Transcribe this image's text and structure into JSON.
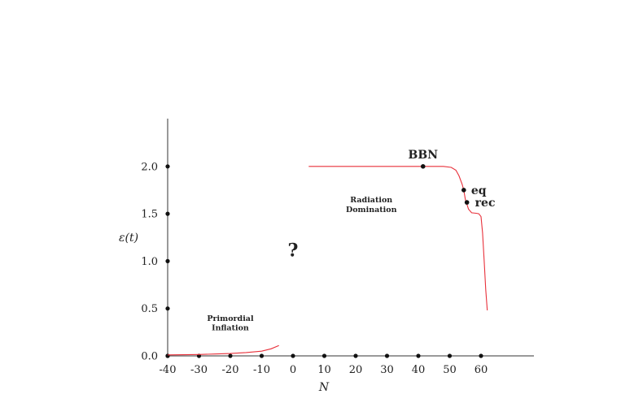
{
  "chart_data": {
    "type": "line",
    "title": "",
    "xlabel": "N",
    "ylabel": "ε(t)",
    "xlim": [
      -40,
      70
    ],
    "ylim": [
      0,
      2.5
    ],
    "xticks": [
      -40,
      -30,
      -20,
      -10,
      0,
      10,
      20,
      30,
      40,
      50,
      60
    ],
    "xtick_labels": [
      "-40",
      "-30",
      "-20",
      "-10",
      "0",
      "10",
      "20",
      "30",
      "40",
      "50",
      "60"
    ],
    "yticks": [
      0,
      0.5,
      1.0,
      1.5,
      2.0
    ],
    "ytick_labels": [
      "0.0",
      "0.5",
      "1.0",
      "1.5",
      "2.0"
    ],
    "series": [
      {
        "color": "#e8303a",
        "x": [
          -40,
          -35,
          -30,
          -25,
          -20,
          -15,
          -10,
          -7,
          -4.5
        ],
        "y": [
          0.01,
          0.012,
          0.015,
          0.02,
          0.025,
          0.035,
          0.05,
          0.075,
          0.11
        ]
      },
      {
        "color": "#e8303a",
        "x": [
          5,
          15,
          25,
          35,
          41.5,
          48,
          50.5,
          52,
          53,
          54,
          54.5,
          55,
          56,
          57,
          58.5,
          59.3,
          60,
          60.5,
          61,
          61.5,
          62
        ],
        "y": [
          2.0,
          2.0,
          2.0,
          2.0,
          2.0,
          2.0,
          1.99,
          1.96,
          1.9,
          1.81,
          1.75,
          1.65,
          1.55,
          1.51,
          1.505,
          1.5,
          1.47,
          1.3,
          1.0,
          0.7,
          0.48
        ]
      }
    ],
    "marked_points": [
      {
        "x": 41.5,
        "y": 2.0,
        "label": "BBN"
      },
      {
        "x": 54.5,
        "y": 1.75,
        "label": "eq"
      },
      {
        "x": 55.5,
        "y": 1.62,
        "label": "rec"
      }
    ],
    "annotations": [
      {
        "text": "Primordial",
        "x": -20,
        "y": 0.37
      },
      {
        "text": "Inflation",
        "x": -20,
        "y": 0.27
      },
      {
        "text": "Radiation",
        "x": 25,
        "y": 1.62
      },
      {
        "text": "Domination",
        "x": 25,
        "y": 1.52
      },
      {
        "text": "?",
        "x": 0,
        "y": 1.05
      }
    ],
    "grid": false,
    "legend": "none"
  }
}
